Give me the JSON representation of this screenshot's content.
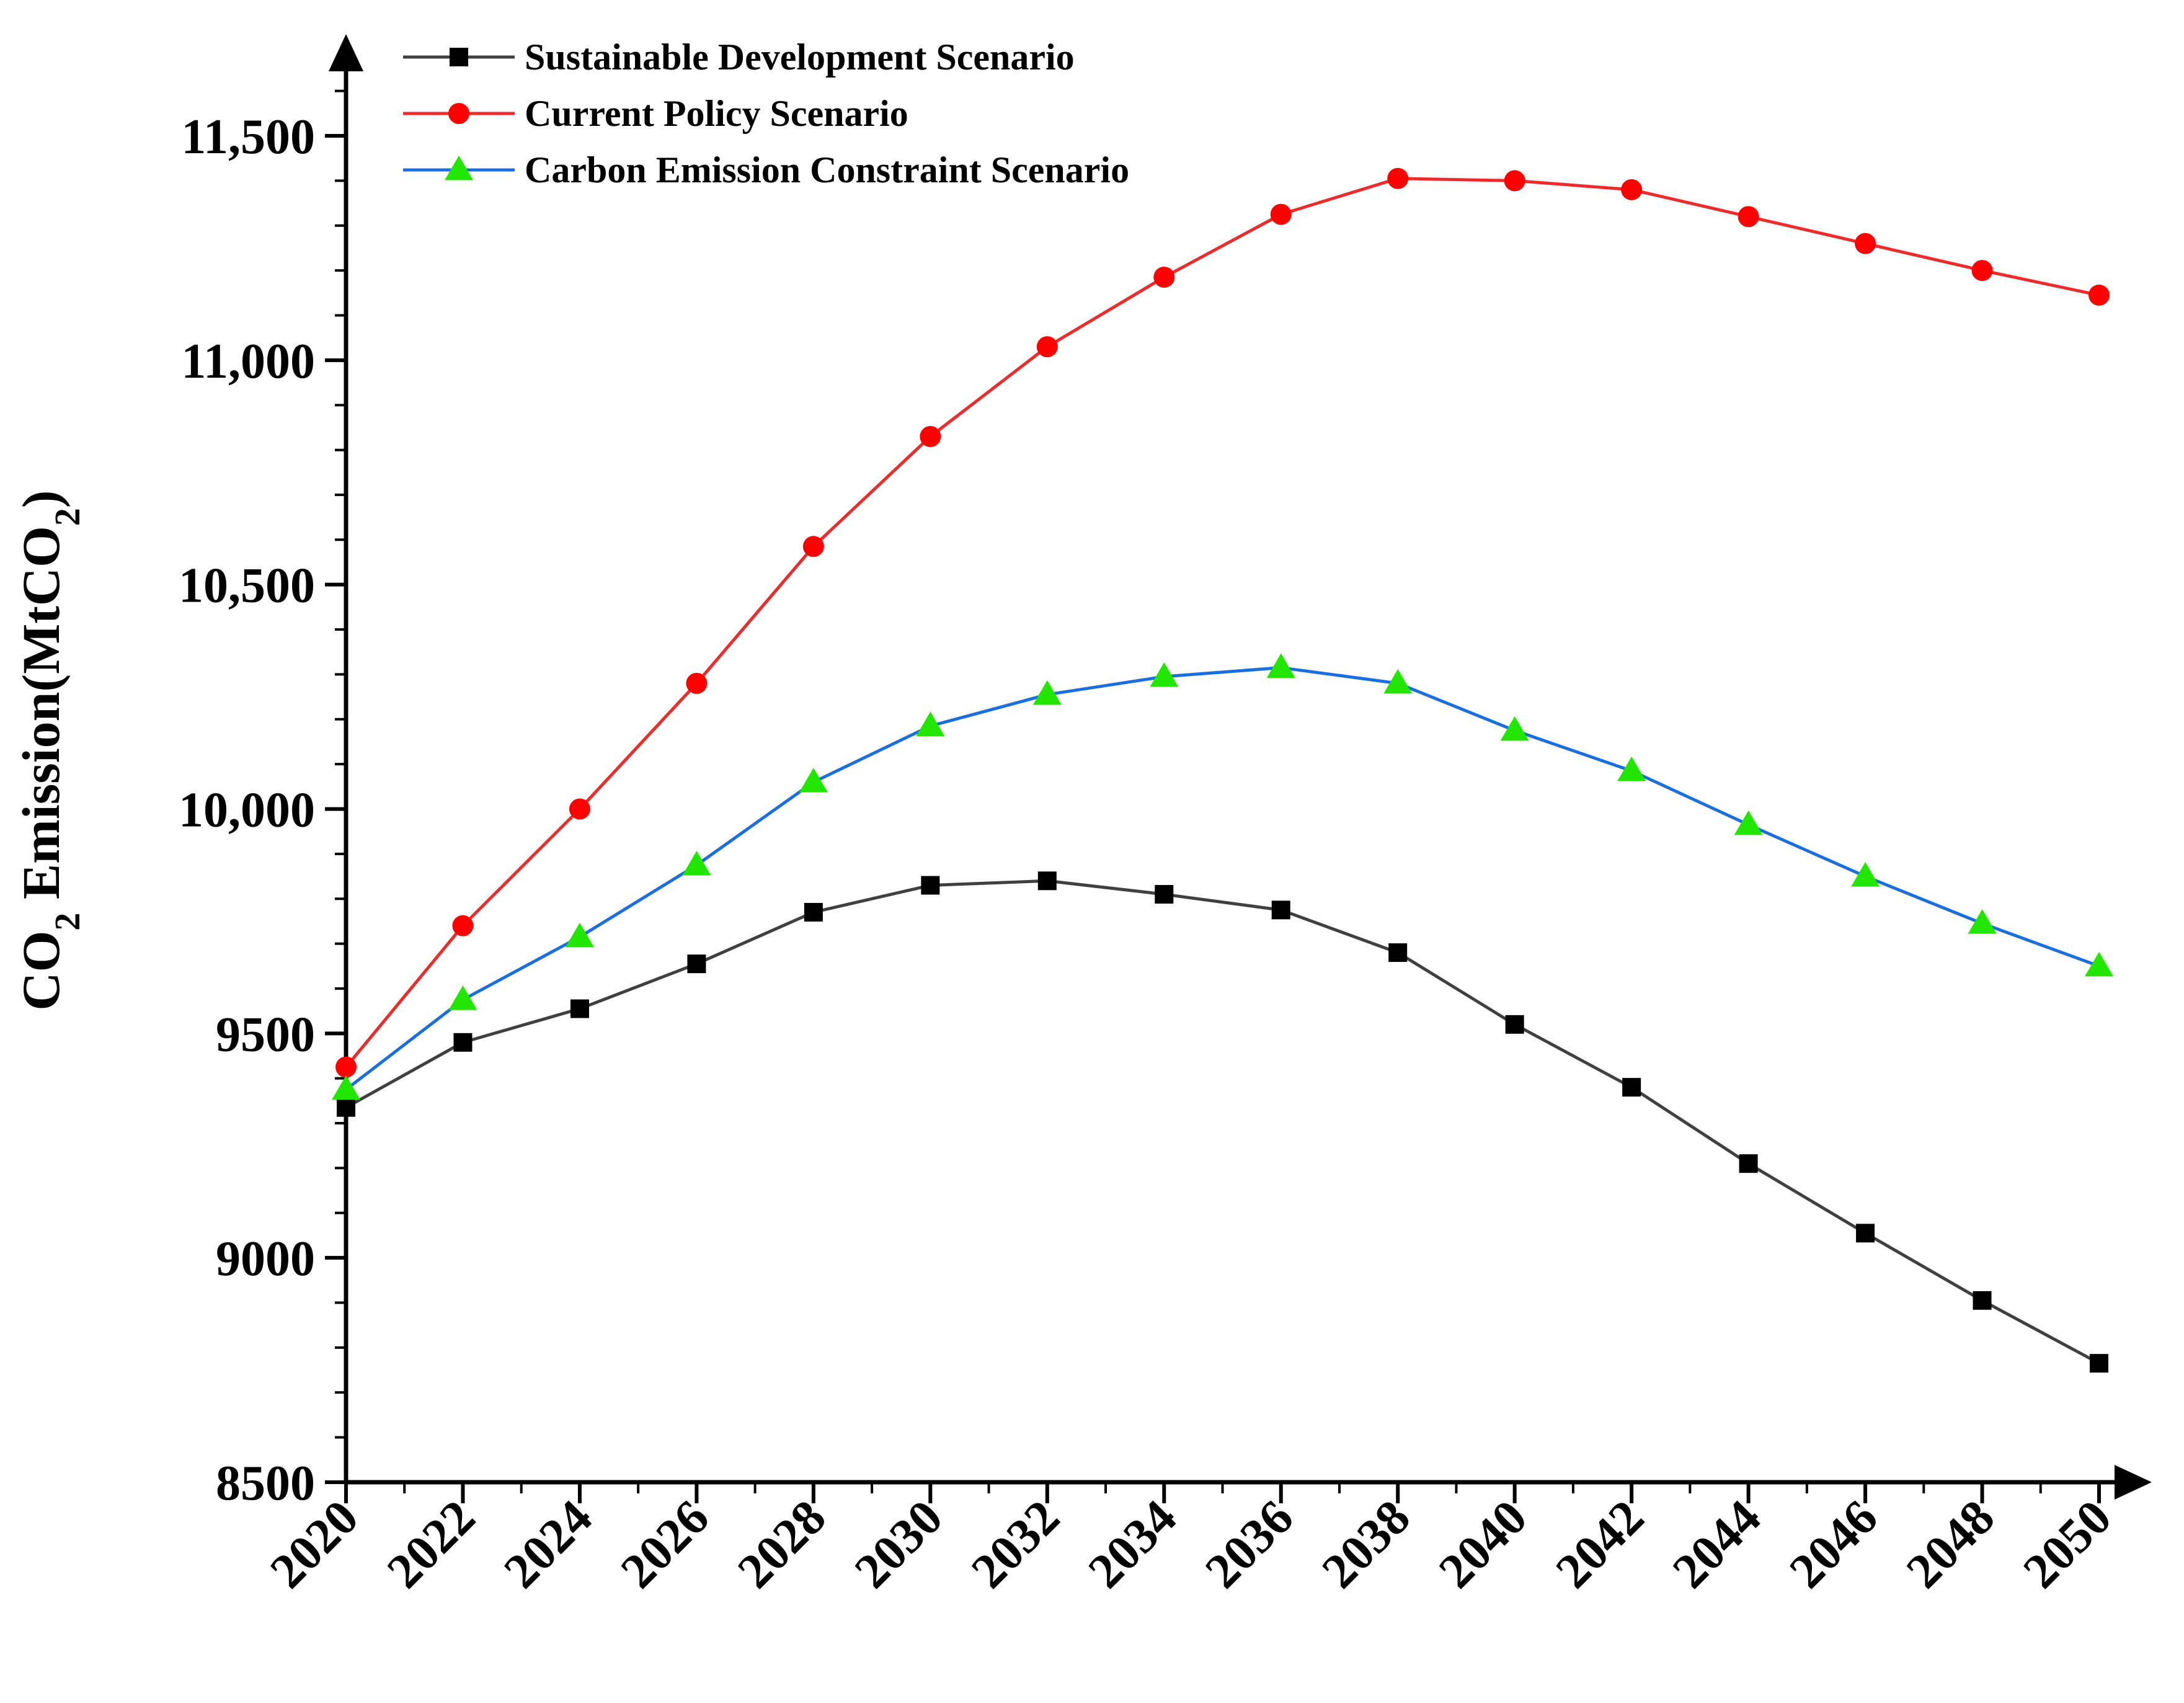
{
  "chart_data": {
    "type": "line",
    "title": "",
    "xlabel": "",
    "ylabel": {
      "prefix": "CO",
      "sub": "2",
      "middle": " Emission(MtCO",
      "sub2": "2",
      "suffix": ")"
    },
    "x": [
      2020,
      2022,
      2024,
      2026,
      2028,
      2030,
      2032,
      2034,
      2036,
      2038,
      2040,
      2042,
      2044,
      2046,
      2048,
      2050
    ],
    "xlim": [
      2020,
      2050
    ],
    "ylim": [
      8500,
      11700
    ],
    "y_ticks": [
      8500,
      9000,
      9500,
      10000,
      10500,
      11000,
      11500
    ],
    "y_tick_labels": [
      "8500",
      "9000",
      "9500",
      "10,000",
      "10,500",
      "11,000",
      "11,500"
    ],
    "x_tick_labels": [
      "2020",
      "2022",
      "2024",
      "2026",
      "2028",
      "2030",
      "2032",
      "2034",
      "2036",
      "2038",
      "2040",
      "2042",
      "2044",
      "2046",
      "2048",
      "2050"
    ],
    "legend_position": "top-left",
    "grid": false,
    "series": [
      {
        "name": "Sustainable Development Scenario",
        "line_color": "#404040",
        "marker": "square",
        "marker_color": "#000000",
        "values": [
          9335,
          9480,
          9555,
          9655,
          9770,
          9830,
          9840,
          9810,
          9775,
          9680,
          9520,
          9380,
          9210,
          9055,
          8905,
          8765
        ]
      },
      {
        "name": "Current Policy Scenario",
        "line_color": "#ee2b2b",
        "marker": "circle",
        "marker_color": "#ff0000",
        "values": [
          9425,
          9740,
          10000,
          10280,
          10585,
          10830,
          11030,
          11185,
          11325,
          11405,
          11400,
          11380,
          11320,
          11260,
          11200,
          11145
        ]
      },
      {
        "name": "Carbon Emission Constraint Scenario",
        "line_color": "#1a6fe0",
        "marker": "triangle",
        "marker_color": "#22e600",
        "values": [
          9375,
          9575,
          9715,
          9875,
          10060,
          10185,
          10255,
          10295,
          10315,
          10280,
          10175,
          10085,
          9965,
          9850,
          9745,
          9650
        ]
      }
    ]
  }
}
